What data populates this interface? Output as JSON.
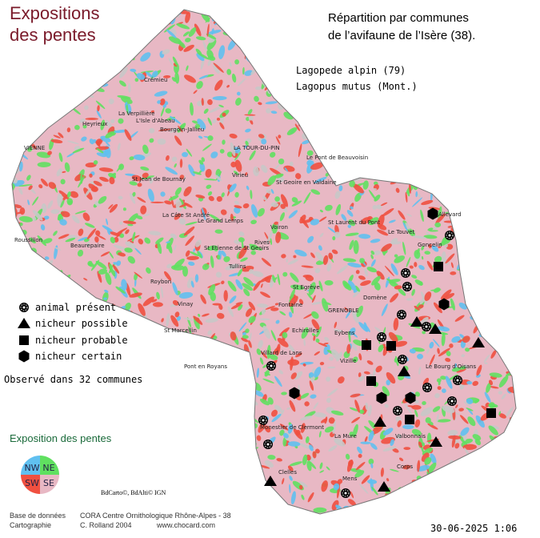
{
  "title": [
    "Expositions",
    "des pentes"
  ],
  "heading": [
    "Répartition par communes",
    "de l’avifaune de l’Isère (38)."
  ],
  "species": {
    "common": "Lagopede alpin  (79)",
    "latin": "Lagopus mutus (Mont.)"
  },
  "legend": [
    "animal présent",
    "nicheur possible",
    "nicheur probable",
    "nicheur certain"
  ],
  "observed": "Observé dans 32 communes",
  "exposition": {
    "title": "Exposition des pentes",
    "quadrants": [
      "NW",
      "NE",
      "SW",
      "SE"
    ]
  },
  "credits": {
    "copyright": "BdCarto©, BdAlti© IGN",
    "database_label": "Base de données",
    "database": "CORA Centre Ornithologique Rhône-Alpes - 38",
    "cartography_label": "Cartographie",
    "cartography": "C. Rolland 2004",
    "website": "www.chocard.com",
    "date": "30-06-2025  1:06"
  },
  "places": [
    "Crémieu",
    "La Verpillière",
    "L'Isle d'Abeau",
    "Heyrieux",
    "Bourgoin-Jallieu",
    "LA TOUR-DU-PIN",
    "Le Pont de Beauvoisin",
    "VIENNE",
    "St Jean de Bournay",
    "Virieu",
    "St Geoire en Valdaine",
    "La Côte St André",
    "Le Grand Lemps",
    "Roussillon",
    "Beaurepaire",
    "St Etienne de St Geoirs",
    "Rives",
    "Voiron",
    "Tullins",
    "St Laurent du Pont",
    "Le Touvet",
    "Goncelin",
    "Allevard",
    "Roybon",
    "St Egrève",
    "Vinay",
    "Fontaine",
    "GRENOBLE",
    "Domène",
    "St Marcellin",
    "Echirolles",
    "Eybens",
    "Villard de Lans",
    "Vizille",
    "Le Bourg d'Oisans",
    "Pont en Royans",
    "Monestier de Clermont",
    "La Mure",
    "Valbonnais",
    "Mens",
    "Clelles",
    "Corps"
  ]
}
